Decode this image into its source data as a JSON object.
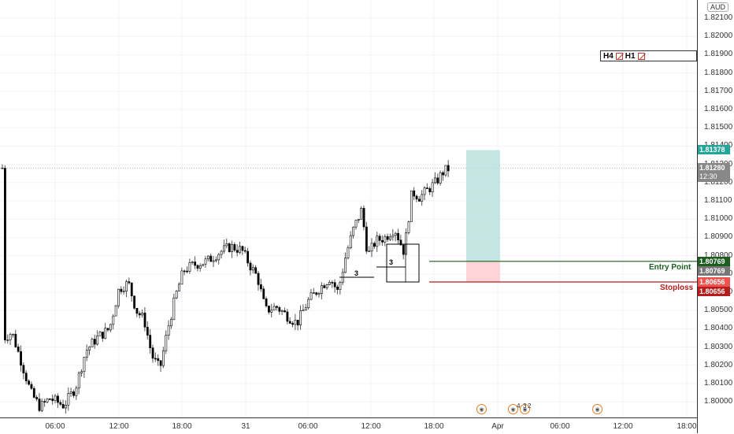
{
  "price_axis": {
    "currency": "AUD",
    "ticks": [
      "1.82100",
      "1.82000",
      "1.81900",
      "1.81800",
      "1.81700",
      "1.81600",
      "1.81500",
      "1.81400",
      "1.81300",
      "1.81200",
      "1.81100",
      "1.81000",
      "1.80900",
      "1.80800",
      "1.80700",
      "1.80600",
      "1.80500",
      "1.80400",
      "1.80300",
      "1.80200",
      "1.80100",
      "1.80000"
    ]
  },
  "time_axis": {
    "labels": [
      "06:00",
      "12:00",
      "18:00",
      "31",
      "06:00",
      "12:00",
      "18:00",
      "Apr",
      "06:00",
      "12:00",
      "18:00"
    ]
  },
  "price_tags": {
    "target": "1.81378",
    "current_price": "1.81280",
    "countdown": "12:30",
    "entry_line": "1.80769",
    "entry_point": "1.80769",
    "stop_line": "1.80656",
    "stoploss": "1.80656"
  },
  "labels": {
    "entry_point": "Entry Point",
    "stoploss": "Stoploss"
  },
  "timeframe_box": {
    "items": [
      "H4",
      "H1"
    ]
  },
  "pattern_counts": [
    "3",
    "3"
  ],
  "events": {
    "counts": [
      "4",
      "3",
      "2"
    ]
  },
  "colors": {
    "bull": "#ffffff",
    "bear": "#000000",
    "wick": "#555555",
    "target_zone": "#b2dfdb",
    "stop_zone": "#ffcdd2",
    "entry_line": "#1b5e20",
    "stop_line": "#b71c1c",
    "target_tag": "#26a69a",
    "stop_tag": "#ef5350",
    "price_tag": "#888888"
  },
  "chart_data": {
    "type": "candlestick",
    "symbol_currency": "AUD",
    "ylim": [
      1.7993,
      1.8215
    ],
    "x": [
      "06:00",
      "12:00",
      "18:00",
      "31",
      "06:00",
      "12:00",
      "18:00",
      "Apr",
      "06:00",
      "12:00",
      "18:00"
    ],
    "series": [
      {
        "trade_setup": {
          "entry": 1.80769,
          "stoploss": 1.80656,
          "target": 1.81378,
          "current": 1.8128
        }
      }
    ]
  }
}
